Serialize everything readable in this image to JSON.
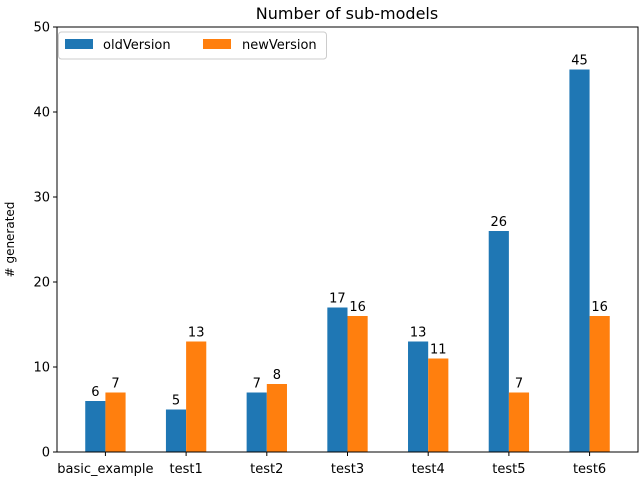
{
  "chart_data": {
    "type": "bar",
    "title": "Number of sub-models",
    "xlabel": "",
    "ylabel": "# generated",
    "categories": [
      "basic_example",
      "test1",
      "test2",
      "test3",
      "test4",
      "test5",
      "test6"
    ],
    "series": [
      {
        "name": "oldVersion",
        "color": "#1f77b4",
        "values": [
          6,
          5,
          7,
          17,
          13,
          26,
          45
        ],
        "labels": [
          "6",
          "5",
          "7",
          "17",
          "13",
          "26",
          "45"
        ]
      },
      {
        "name": "newVersion",
        "color": "#ff7f0e",
        "values": [
          7,
          13,
          8,
          16,
          11,
          7,
          16
        ],
        "labels": [
          "7",
          "13",
          "8",
          "16",
          "11",
          "7",
          "16"
        ]
      }
    ],
    "ylim": [
      0,
      50
    ],
    "yticks": [
      0,
      10,
      20,
      30,
      40,
      50
    ],
    "ytick_labels": [
      "0",
      "10",
      "20",
      "30",
      "40",
      "50"
    ],
    "grid": false,
    "legend_position": "top-left",
    "legend_columns": 2
  }
}
